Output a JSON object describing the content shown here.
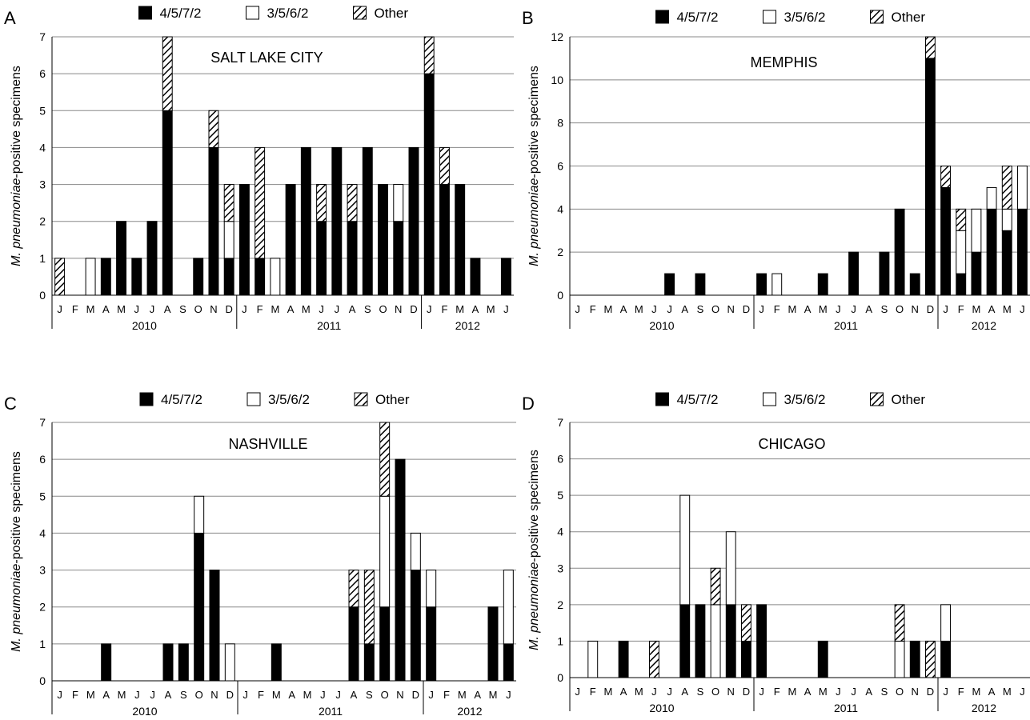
{
  "legend": {
    "entries": [
      "4/5/7/2",
      "3/5/6/2",
      "Other"
    ]
  },
  "ylabel": {
    "italic": "M. pneumoniae",
    "rest": "-positive specimens"
  },
  "colors": {
    "type1": "#000000",
    "type2": "#ffffff",
    "hatch": "#000000",
    "grid": "#888888"
  },
  "months": [
    "J",
    "F",
    "M",
    "A",
    "M",
    "J",
    "J",
    "A",
    "S",
    "O",
    "N",
    "D",
    "J",
    "F",
    "M",
    "A",
    "M",
    "J",
    "J",
    "A",
    "S",
    "O",
    "N",
    "D",
    "J",
    "F",
    "M",
    "A",
    "M",
    "J"
  ],
  "years": [
    {
      "label": "2010",
      "start": 0,
      "end": 12
    },
    {
      "label": "2011",
      "start": 12,
      "end": 24
    },
    {
      "label": "2012",
      "start": 24,
      "end": 30
    }
  ],
  "chart_data": [
    {
      "type": "bar",
      "letter": "A",
      "title": "SALT LAKE CITY",
      "ylim": [
        0,
        7
      ],
      "yticks": [
        0,
        1,
        2,
        3,
        4,
        5,
        6,
        7
      ],
      "series": [
        {
          "name": "4/5/7/2",
          "values": [
            0,
            0,
            0,
            1,
            2,
            1,
            2,
            5,
            0,
            1,
            4,
            1,
            3,
            1,
            0,
            3,
            4,
            2,
            4,
            2,
            4,
            3,
            2,
            4,
            6,
            3,
            3,
            1,
            0,
            1
          ]
        },
        {
          "name": "3/5/6/2",
          "values": [
            0,
            0,
            1,
            0,
            0,
            0,
            0,
            0,
            0,
            0,
            0,
            1,
            0,
            0,
            1,
            0,
            0,
            0,
            0,
            0,
            0,
            0,
            1,
            0,
            0,
            0,
            0,
            0,
            0,
            0
          ]
        },
        {
          "name": "Other",
          "values": [
            1,
            0,
            0,
            0,
            0,
            0,
            0,
            2,
            0,
            0,
            1,
            1,
            0,
            3,
            0,
            0,
            0,
            1,
            0,
            1,
            0,
            0,
            0,
            0,
            1,
            1,
            0,
            0,
            0,
            0
          ]
        }
      ]
    },
    {
      "type": "bar",
      "letter": "B",
      "title": "MEMPHIS",
      "ylim": [
        0,
        12
      ],
      "yticks": [
        0,
        2,
        4,
        6,
        8,
        10,
        12
      ],
      "series": [
        {
          "name": "4/5/7/2",
          "values": [
            0,
            0,
            0,
            0,
            0,
            0,
            1,
            0,
            1,
            0,
            0,
            0,
            1,
            0,
            0,
            0,
            1,
            0,
            2,
            0,
            2,
            4,
            1,
            11,
            5,
            1,
            2,
            4,
            3,
            4
          ]
        },
        {
          "name": "3/5/6/2",
          "values": [
            0,
            0,
            0,
            0,
            0,
            0,
            0,
            0,
            0,
            0,
            0,
            0,
            0,
            1,
            0,
            0,
            0,
            0,
            0,
            0,
            0,
            0,
            0,
            0,
            0,
            2,
            2,
            1,
            1,
            2
          ]
        },
        {
          "name": "Other",
          "values": [
            0,
            0,
            0,
            0,
            0,
            0,
            0,
            0,
            0,
            0,
            0,
            0,
            0,
            0,
            0,
            0,
            0,
            0,
            0,
            0,
            0,
            0,
            0,
            1,
            1,
            1,
            0,
            0,
            2,
            0
          ]
        }
      ]
    },
    {
      "type": "bar",
      "letter": "C",
      "title": "NASHVILLE",
      "ylim": [
        0,
        7
      ],
      "yticks": [
        0,
        1,
        2,
        3,
        4,
        5,
        6,
        7
      ],
      "series": [
        {
          "name": "4/5/7/2",
          "values": [
            0,
            0,
            0,
            1,
            0,
            0,
            0,
            1,
            1,
            4,
            3,
            0,
            0,
            0,
            1,
            0,
            0,
            0,
            0,
            2,
            1,
            2,
            6,
            3,
            2,
            0,
            0,
            0,
            2,
            1
          ]
        },
        {
          "name": "3/5/6/2",
          "values": [
            0,
            0,
            0,
            0,
            0,
            0,
            0,
            0,
            0,
            1,
            0,
            1,
            0,
            0,
            0,
            0,
            0,
            0,
            0,
            0,
            0,
            3,
            0,
            1,
            1,
            0,
            0,
            0,
            0,
            2
          ]
        },
        {
          "name": "Other",
          "values": [
            0,
            0,
            0,
            0,
            0,
            0,
            0,
            0,
            0,
            0,
            0,
            0,
            0,
            0,
            0,
            0,
            0,
            0,
            0,
            1,
            2,
            2,
            0,
            0,
            0,
            0,
            0,
            0,
            0,
            0
          ]
        }
      ]
    },
    {
      "type": "bar",
      "letter": "D",
      "title": "CHICAGO",
      "ylim": [
        0,
        7
      ],
      "yticks": [
        0,
        1,
        2,
        3,
        4,
        5,
        6,
        7
      ],
      "series": [
        {
          "name": "4/5/7/2",
          "values": [
            0,
            0,
            0,
            1,
            0,
            0,
            0,
            2,
            2,
            0,
            2,
            1,
            2,
            0,
            0,
            0,
            1,
            0,
            0,
            0,
            0,
            0,
            1,
            0,
            1,
            0,
            0,
            0,
            0,
            0
          ]
        },
        {
          "name": "3/5/6/2",
          "values": [
            0,
            1,
            0,
            0,
            0,
            0,
            0,
            3,
            0,
            2,
            2,
            0,
            0,
            0,
            0,
            0,
            0,
            0,
            0,
            0,
            0,
            1,
            0,
            0,
            1,
            0,
            0,
            0,
            0,
            0
          ]
        },
        {
          "name": "Other",
          "values": [
            0,
            0,
            0,
            0,
            0,
            1,
            0,
            0,
            0,
            1,
            0,
            1,
            0,
            0,
            0,
            0,
            0,
            0,
            0,
            0,
            0,
            1,
            0,
            1,
            0,
            0,
            0,
            0,
            0,
            0
          ]
        }
      ]
    }
  ]
}
